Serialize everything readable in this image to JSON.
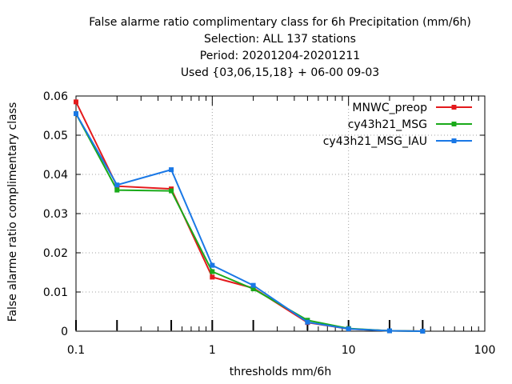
{
  "chart_data": {
    "type": "line",
    "title_lines": [
      "False alarme ratio complimentary class  for 6h Precipitation (mm/6h)",
      "Selection: ALL    137 stations",
      "Period: 20201204-20201211",
      "Used {03,06,15,18} + 06-00 09-03"
    ],
    "xlabel": "thresholds mm/6h",
    "ylabel": "False alarme ratio complimentary class",
    "xscale": "log",
    "xlim": [
      0.1,
      100
    ],
    "ylim": [
      0,
      0.06
    ],
    "x_ticks": [
      "0.1",
      "1",
      "10",
      "100"
    ],
    "y_ticks": [
      "0",
      "0.01",
      "0.02",
      "0.03",
      "0.04",
      "0.05",
      "0.06"
    ],
    "grid": true,
    "legend_position": "top-right",
    "x": [
      0.1,
      0.2,
      0.5,
      1,
      2,
      5,
      10,
      20,
      35
    ],
    "series": [
      {
        "name": "MNWC_preop",
        "color": "#e41a1c",
        "values": [
          0.0585,
          0.037,
          0.0363,
          0.0138,
          0.011,
          0.0022,
          0.0006,
          0.0001,
          0.0
        ]
      },
      {
        "name": "cy43h21_MSG",
        "color": "#1aaa1a",
        "values": [
          0.0555,
          0.036,
          0.0358,
          0.0152,
          0.0108,
          0.0028,
          0.0007,
          0.0001,
          0.0
        ]
      },
      {
        "name": "cy43h21_MSG_IAU",
        "color": "#1a78e6",
        "values": [
          0.0555,
          0.0373,
          0.0412,
          0.0168,
          0.0117,
          0.0023,
          0.0006,
          0.0001,
          0.0
        ]
      }
    ]
  }
}
